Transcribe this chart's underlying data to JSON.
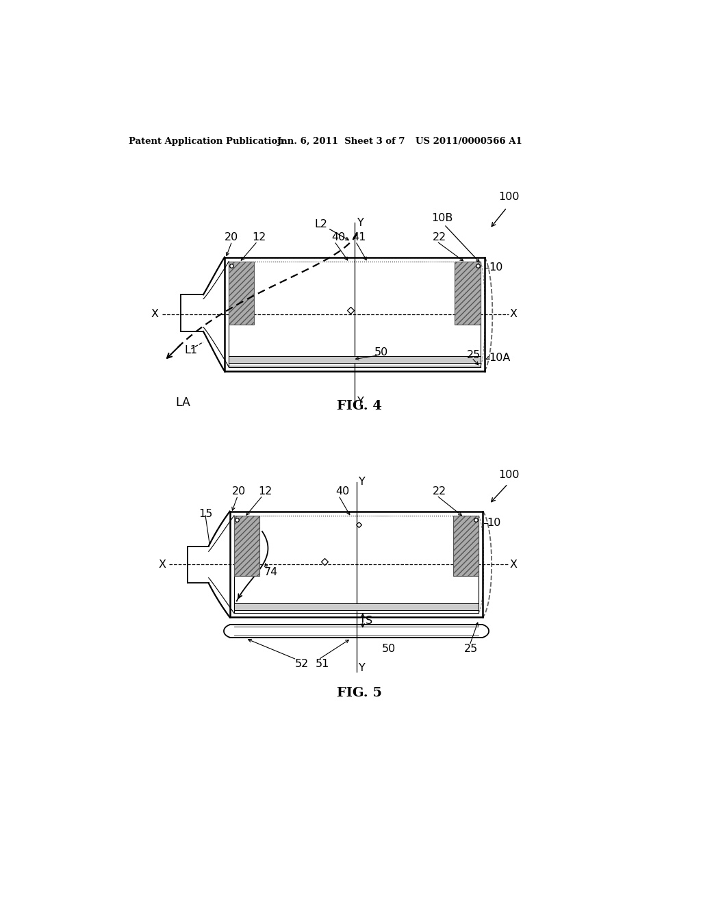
{
  "bg_color": "#ffffff",
  "header_text": "Patent Application Publication",
  "header_date": "Jan. 6, 2011  Sheet 3 of 7",
  "header_patent": "US 2011/0000566 A1",
  "fig4_title": "FIG. 4",
  "fig5_title": "FIG. 5",
  "lc": "#000000"
}
